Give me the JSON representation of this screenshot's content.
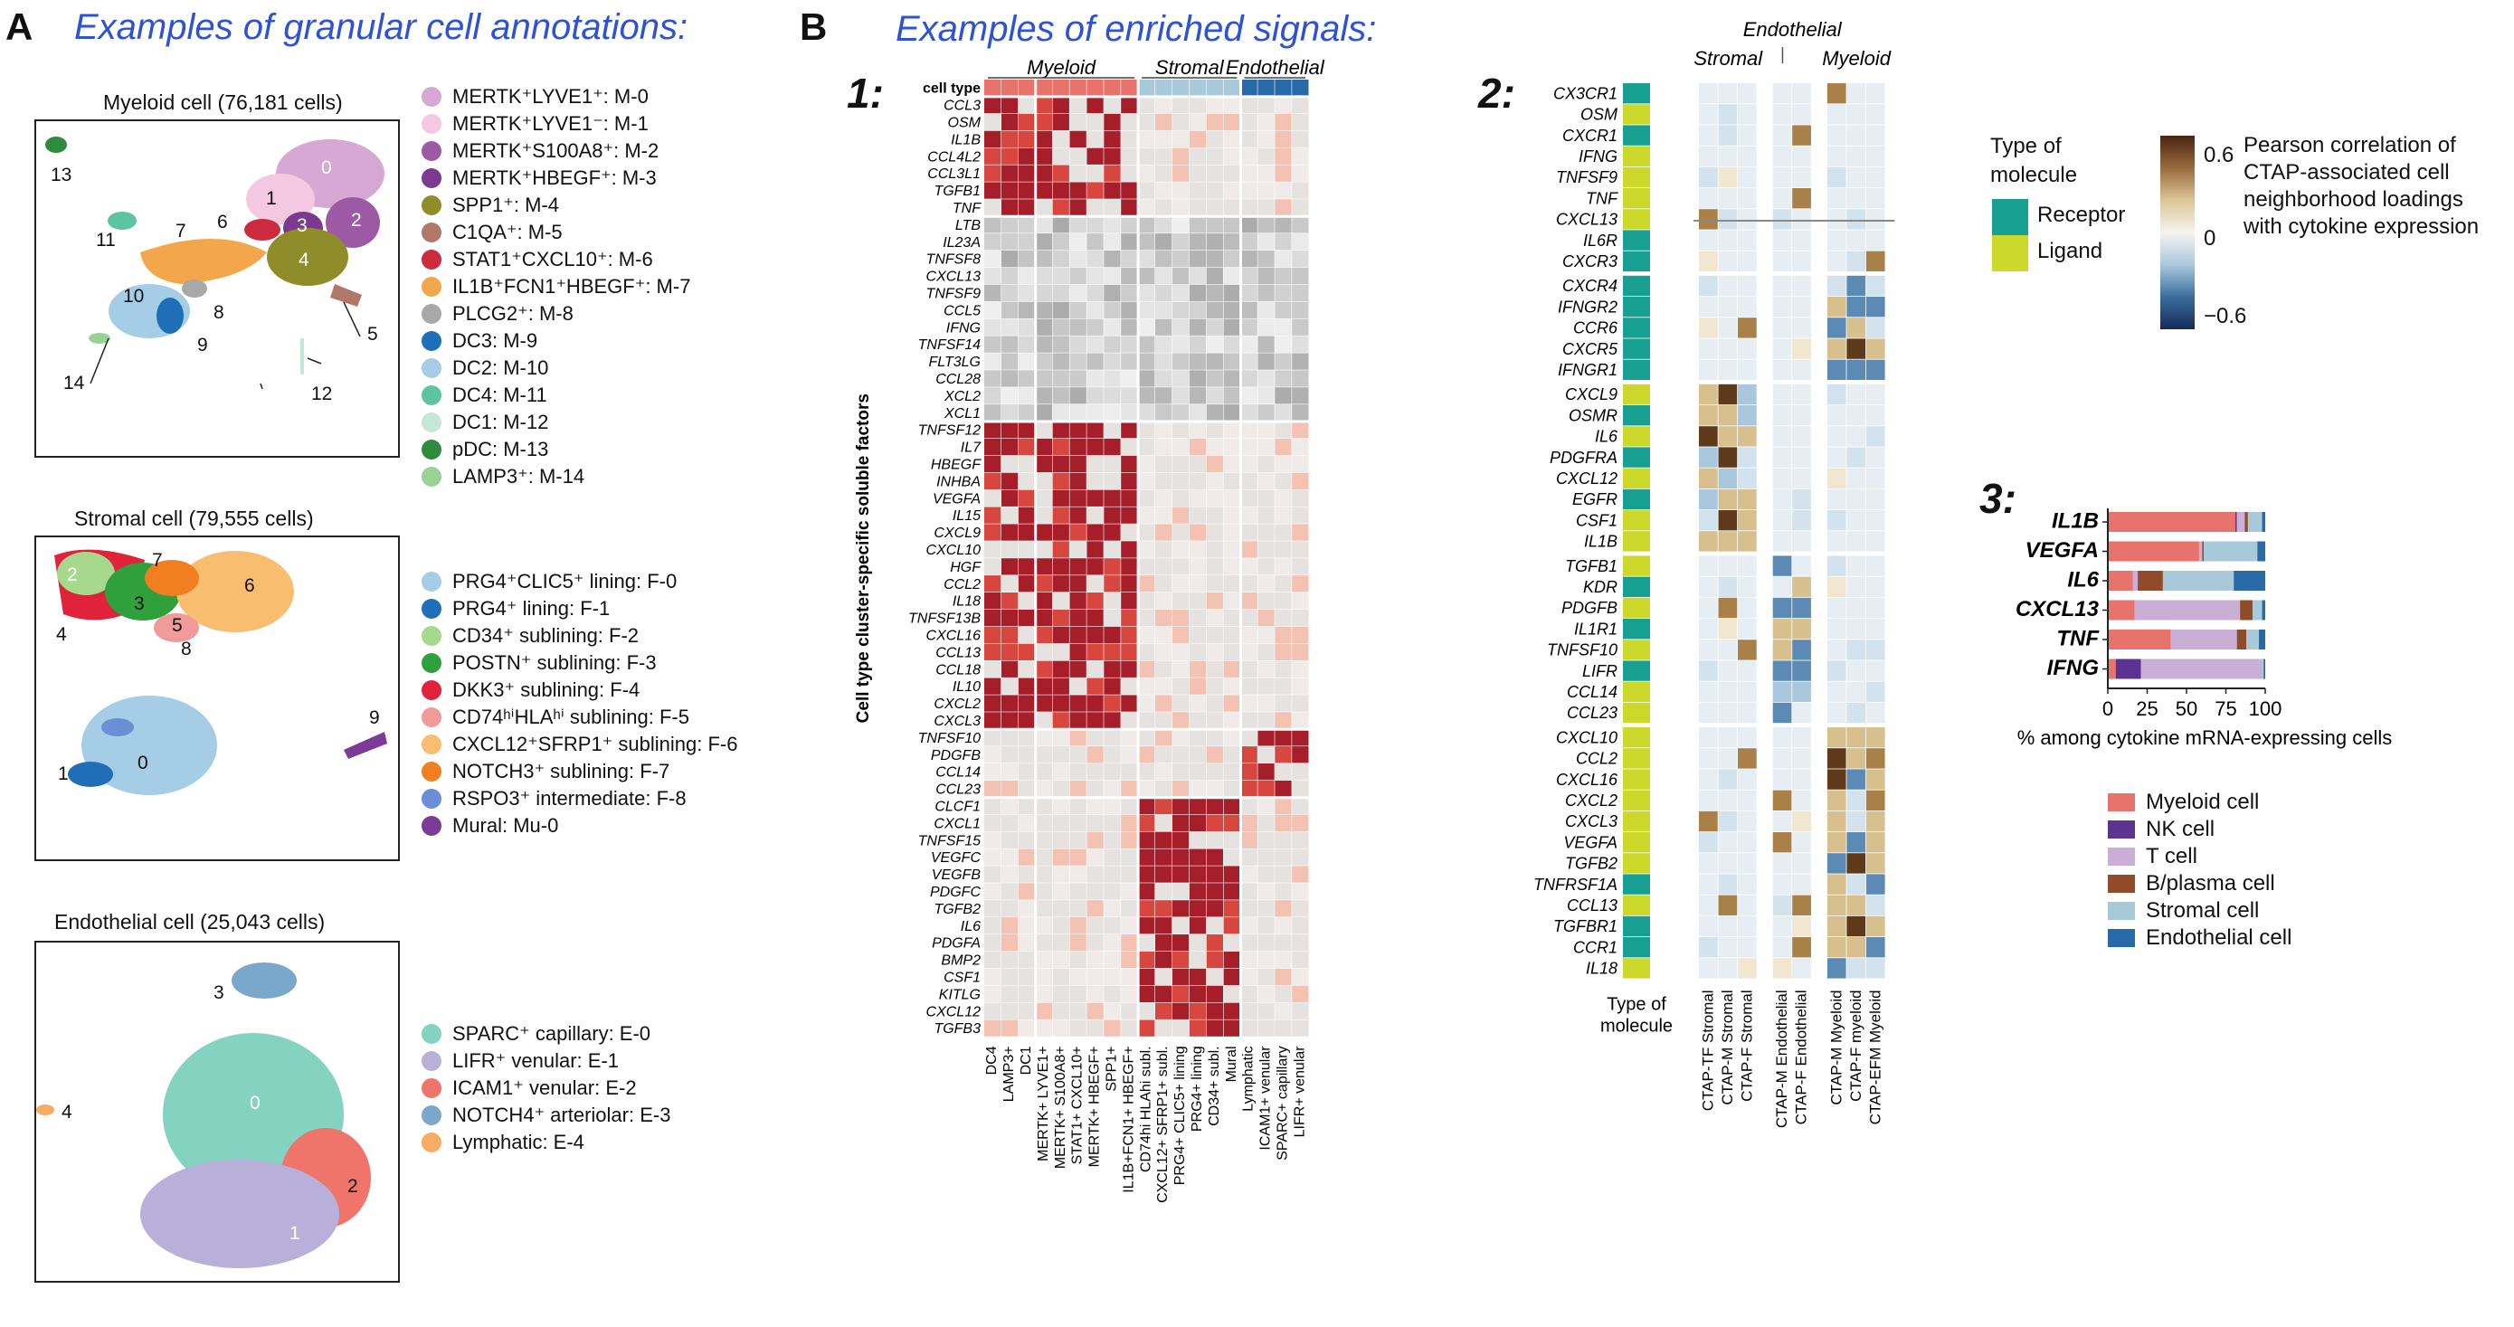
{
  "panelA": {
    "letter": "A",
    "heading": "Examples of granular cell annotations:",
    "myeloid": {
      "title": "Myeloid cell (76,181 cells)",
      "legend": [
        {
          "label": "MERTK⁺LYVE1⁺: M-0",
          "color": "#d7a8d3"
        },
        {
          "label": "MERTK⁺LYVE1⁻: M-1",
          "color": "#f4c8e0"
        },
        {
          "label": "MERTK⁺S100A8⁺: M-2",
          "color": "#9d5aa4"
        },
        {
          "label": "MERTK⁺HBEGF⁺: M-3",
          "color": "#7b3990"
        },
        {
          "label": "SPP1⁺: M-4",
          "color": "#8f8c2a"
        },
        {
          "label": "C1QA⁺: M-5",
          "color": "#b1786a"
        },
        {
          "label": "STAT1⁺CXCL10⁺: M-6",
          "color": "#cc2a3d"
        },
        {
          "label": "IL1B⁺FCN1⁺HBEGF⁺: M-7",
          "color": "#f4a64a"
        },
        {
          "label": "PLCG2⁺: M-8",
          "color": "#a8a8a8"
        },
        {
          "label": "DC3: M-9",
          "color": "#1f6fb8"
        },
        {
          "label": "DC2: M-10",
          "color": "#a5cde6"
        },
        {
          "label": "DC4: M-11",
          "color": "#5cc4a0"
        },
        {
          "label": "DC1: M-12",
          "color": "#c3e8d8"
        },
        {
          "label": "pDC: M-13",
          "color": "#2e8a3d"
        },
        {
          "label": "LAMP3⁺: M-14",
          "color": "#9ad195"
        }
      ],
      "labels": [
        "0",
        "1",
        "2",
        "3",
        "4",
        "5",
        "6",
        "7",
        "8",
        "9",
        "10",
        "11",
        "12",
        "13",
        "14"
      ]
    },
    "stromal": {
      "title": "Stromal cell (79,555 cells)",
      "legend": [
        {
          "label": "PRG4⁺CLIC5⁺ lining: F-0",
          "color": "#a5cde6"
        },
        {
          "label": "PRG4⁺ lining: F-1",
          "color": "#1f6fb8"
        },
        {
          "label": "CD34⁺ sublining: F-2",
          "color": "#a6d98c"
        },
        {
          "label": "POSTN⁺ sublining: F-3",
          "color": "#2fa03c"
        },
        {
          "label": "DKK3⁺ sublining: F-4",
          "color": "#e0223a"
        },
        {
          "label": "CD74ʰⁱHLAʰⁱ sublining: F-5",
          "color": "#f19a9a"
        },
        {
          "label": "CXCL12⁺SFRP1⁺ sublining: F-6",
          "color": "#f8bd6f"
        },
        {
          "label": "NOTCH3⁺ sublining: F-7",
          "color": "#f17f21"
        },
        {
          "label": "RSPO3⁺ intermediate: F-8",
          "color": "#6b8fd6"
        },
        {
          "label": "Mural: Mu-0",
          "color": "#7b3b97"
        }
      ],
      "labels": [
        "0",
        "1",
        "2",
        "3",
        "4",
        "5",
        "6",
        "7",
        "8",
        "9"
      ]
    },
    "endothelial": {
      "title": "Endothelial cell (25,043 cells)",
      "legend": [
        {
          "label": "SPARC⁺ capillary: E-0",
          "color": "#84d2c0"
        },
        {
          "label": "LIFR⁺ venular: E-1",
          "color": "#b9b0da"
        },
        {
          "label": "ICAM1⁺ venular: E-2",
          "color": "#ef746a"
        },
        {
          "label": "NOTCH4⁺ arteriolar: E-3",
          "color": "#7aa7cc"
        },
        {
          "label": "Lymphatic: E-4",
          "color": "#f6ad62"
        }
      ],
      "labels": [
        "0",
        "1",
        "2",
        "3",
        "4"
      ]
    }
  },
  "panelB": {
    "letter": "B",
    "heading": "Examples of enriched signals:",
    "sub1": "1:",
    "sub2": "2:",
    "sub3": "3:"
  },
  "heatmap1": {
    "rows": [
      "cell type",
      "CCL3",
      "OSM",
      "IL1B",
      "CCL4L2",
      "CCL3L1",
      "TGFB1",
      "TNF",
      "LTB",
      "IL23A",
      "TNFSF8",
      "CXCL13",
      "TNFSF9",
      "CCL5",
      "IFNG",
      "TNFSF14",
      "FLT3LG",
      "CCL28",
      "XCL2",
      "XCL1",
      "TNFSF12",
      "IL7",
      "HBEGF",
      "INHBA",
      "VEGFA",
      "IL15",
      "CXCL9",
      "CXCL10",
      "HGF",
      "CCL2",
      "IL18",
      "TNFSF13B",
      "CXCL16",
      "CCL13",
      "CCL18",
      "IL10",
      "CXCL2",
      "CXCL3",
      "TNFSF10",
      "PDGFB",
      "CCL14",
      "CCL23",
      "CLCF1",
      "CXCL1",
      "TNFSF15",
      "VEGFC",
      "VEGFB",
      "PDGFC",
      "TGFB2",
      "IL6",
      "PDGFA",
      "BMP2",
      "CSF1",
      "KITLG",
      "CXCL12",
      "TGFB3"
    ],
    "columns": [
      "DC4",
      "LAMP3+",
      "DC1",
      "MERTK+ LYVE1+",
      "MERTK+ S100A8+",
      "STAT1+ CXCL10+",
      "MERTK+ HBEGF+",
      "SPP1+",
      "IL1B+FCN1+ HBEGF+",
      "CD74hi HLAhi subl.",
      "CXCL12+ SFRP1+ subl.",
      "PRG4+ CLIC5+ lining",
      "PRG4+ lining",
      "CD34+ subl.",
      "Mural",
      "Lymphatic",
      "ICAM1+ venular",
      "SPARC+ capillary",
      "LIFR+ venular"
    ],
    "groups": [
      "Myeloid",
      "Stromal",
      "Endothelial"
    ],
    "y_label": "Cell type cluster-specific soluble factors"
  },
  "heatmap2": {
    "rows": [
      "CX3CR1",
      "OSM",
      "CXCR1",
      "IFNG",
      "TNFSF9",
      "TNF",
      "CXCL13",
      "IL6R",
      "CXCR3",
      "CXCR4",
      "IFNGR2",
      "CCR6",
      "CXCR5",
      "IFNGR1",
      "CXCL9",
      "OSMR",
      "IL6",
      "PDGFRA",
      "CXCL12",
      "EGFR",
      "CSF1",
      "IL1B",
      "TGFB1",
      "KDR",
      "PDGFB",
      "IL1R1",
      "TNFSF10",
      "LIFR",
      "CCL14",
      "CCL23",
      "CXCL10",
      "CCL2",
      "CXCL16",
      "CXCL2",
      "CXCL3",
      "VEGFA",
      "TGFB2",
      "TNFRSF1A",
      "CCL13",
      "TGFBR1",
      "CCR1",
      "IL18"
    ],
    "receptor_rows": [
      "CX3CR1",
      "CXCR1",
      "IL6R",
      "CXCR3",
      "CXCR4",
      "IFNGR2",
      "CCR6",
      "CXCR5",
      "IFNGR1",
      "OSMR",
      "PDGFRA",
      "EGFR",
      "KDR",
      "IL1R1",
      "LIFR",
      "TNFRSF1A",
      "TGFBR1",
      "CCR1"
    ],
    "columns": [
      "CTAP-TF Stromal",
      "CTAP-M Stromal",
      "CTAP-F Stromal",
      "CTAP-M Endothelial",
      "CTAP-F Endothelial",
      "CTAP-M Myeloid",
      "CTAP-F myeloid",
      "CTAP-EFM Myeloid"
    ],
    "groups": [
      "Stromal",
      "Endothelial",
      "Myeloid"
    ],
    "type_label_1": "Type of",
    "type_label_2": "molecule"
  },
  "legend_type": {
    "title1": "Type of",
    "title2": "molecule",
    "receptor": "Receptor",
    "ligand": "Ligand",
    "receptor_color": "#17a091",
    "ligand_color": "#ccd92a"
  },
  "colorbar": {
    "max": "0.6",
    "mid": "0",
    "min": "−0.6",
    "title": [
      "Pearson correlation of",
      "CTAP-associated cell",
      "neighborhood loadings",
      "with cytokine expression"
    ]
  },
  "chart_data": {
    "type": "bar",
    "title": "",
    "stacked": true,
    "orientation": "horizontal",
    "categories": [
      "IL1B",
      "VEGFA",
      "IL6",
      "CXCL13",
      "TNF",
      "IFNG"
    ],
    "series": [
      {
        "name": "Myeloid cell",
        "color": "#e8736d",
        "values": [
          81,
          58,
          16,
          17,
          40,
          5
        ]
      },
      {
        "name": "NK cell",
        "color": "#5d3391",
        "values": [
          1,
          0,
          0,
          0,
          0,
          16
        ]
      },
      {
        "name": "T cell",
        "color": "#c9aed6",
        "values": [
          5,
          2,
          3,
          67,
          42,
          77
        ]
      },
      {
        "name": "B/plasma cell",
        "color": "#8f4b2a",
        "values": [
          2,
          1,
          16,
          8,
          6,
          0
        ]
      },
      {
        "name": "Stromal cell",
        "color": "#a7c9da",
        "values": [
          9,
          34,
          45,
          6,
          8,
          1
        ]
      },
      {
        "name": "Endothelial cell",
        "color": "#2869a8",
        "values": [
          2,
          5,
          20,
          2,
          4,
          1
        ]
      }
    ],
    "xlabel": "% among cytokine mRNA-expressing cells",
    "ylabel": "",
    "xlim": [
      0,
      100
    ],
    "ticks": [
      "0",
      "25",
      "50",
      "75",
      "100"
    ],
    "legend": "bottom"
  }
}
